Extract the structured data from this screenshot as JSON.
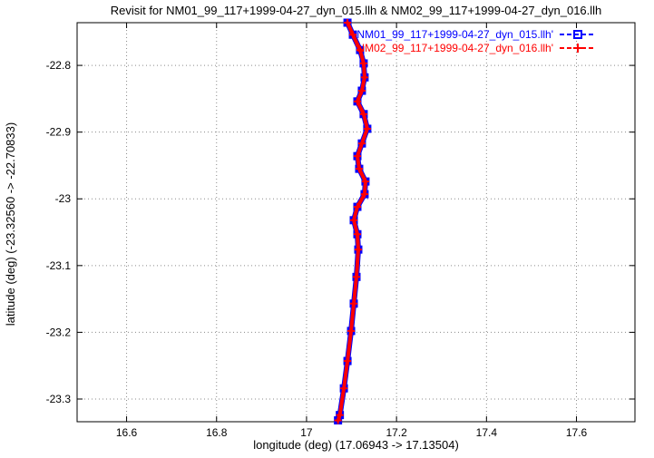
{
  "title": "Revisit for NM01_99_117+1999-04-27_dyn_015.llh & NM02_99_117+1999-04-27_dyn_016.llh",
  "axes": {
    "xlabel": "longitude (deg) (17.06943 -> 17.13504)",
    "ylabel": "latitude (deg) (-23.32560 -> -22.70833)"
  },
  "colors": {
    "series1": "#0000ff",
    "series2": "#ff0000",
    "grid": "#8a8a8a",
    "border": "#000000"
  },
  "chart_data": {
    "type": "line",
    "title": "Revisit for NM01_99_117+1999-04-27_dyn_015.llh & NM02_99_117+1999-04-27_dyn_016.llh",
    "xlabel": "longitude (deg) (17.06943 -> 17.13504)",
    "ylabel": "latitude (deg) (-23.32560 -> -22.70833)",
    "xlim": [
      16.49,
      17.73
    ],
    "ylim": [
      -23.334,
      -22.736
    ],
    "x_data_range": [
      17.06943,
      17.13504
    ],
    "y_data_range": [
      -23.3256,
      -22.70833
    ],
    "xticks": [
      16.6,
      16.8,
      17.0,
      17.2,
      17.4,
      17.6
    ],
    "xtick_labels": [
      "16.6",
      "16.8",
      "17",
      "17.2",
      "17.4",
      "17.6"
    ],
    "yticks": [
      -22.8,
      -22.9,
      -23.0,
      -23.1,
      -23.2,
      -23.3
    ],
    "ytick_labels": [
      "-22.8",
      "-22.9",
      "-23",
      "-23.1",
      "-23.2",
      "-23.3"
    ],
    "grid": true,
    "legend_position": "top-right",
    "series": [
      {
        "name": "'NM01_99_117+1999-04-27_dyn_015.llh'",
        "color": "#0000ff",
        "marker": "square",
        "line_style": "dashed-with-points",
        "points": [
          [
            17.091,
            -22.736
          ],
          [
            17.103,
            -22.754
          ],
          [
            17.119,
            -22.777
          ],
          [
            17.127,
            -22.797
          ],
          [
            17.129,
            -22.818
          ],
          [
            17.123,
            -22.838
          ],
          [
            17.113,
            -22.854
          ],
          [
            17.127,
            -22.873
          ],
          [
            17.135,
            -22.895
          ],
          [
            17.123,
            -22.917
          ],
          [
            17.113,
            -22.936
          ],
          [
            17.117,
            -22.955
          ],
          [
            17.131,
            -22.974
          ],
          [
            17.129,
            -22.993
          ],
          [
            17.113,
            -23.012
          ],
          [
            17.105,
            -23.032
          ],
          [
            17.113,
            -23.053
          ],
          [
            17.115,
            -23.076
          ],
          [
            17.111,
            -23.117
          ],
          [
            17.105,
            -23.157
          ],
          [
            17.099,
            -23.198
          ],
          [
            17.091,
            -23.243
          ],
          [
            17.083,
            -23.284
          ],
          [
            17.074,
            -23.324
          ],
          [
            17.07,
            -23.332
          ]
        ]
      },
      {
        "name": "'NM02_99_117+1999-04-27_dyn_016.llh'",
        "color": "#ff0000",
        "marker": "plus",
        "line_style": "dashed-with-points",
        "points": [
          [
            17.091,
            -22.736
          ],
          [
            17.103,
            -22.754
          ],
          [
            17.119,
            -22.777
          ],
          [
            17.127,
            -22.797
          ],
          [
            17.129,
            -22.818
          ],
          [
            17.123,
            -22.838
          ],
          [
            17.113,
            -22.854
          ],
          [
            17.127,
            -22.873
          ],
          [
            17.135,
            -22.895
          ],
          [
            17.123,
            -22.917
          ],
          [
            17.113,
            -22.936
          ],
          [
            17.117,
            -22.955
          ],
          [
            17.131,
            -22.974
          ],
          [
            17.129,
            -22.993
          ],
          [
            17.113,
            -23.012
          ],
          [
            17.105,
            -23.032
          ],
          [
            17.113,
            -23.053
          ],
          [
            17.115,
            -23.076
          ],
          [
            17.111,
            -23.117
          ],
          [
            17.105,
            -23.157
          ],
          [
            17.099,
            -23.198
          ],
          [
            17.091,
            -23.243
          ],
          [
            17.083,
            -23.284
          ],
          [
            17.074,
            -23.324
          ],
          [
            17.07,
            -23.332
          ]
        ]
      }
    ]
  }
}
